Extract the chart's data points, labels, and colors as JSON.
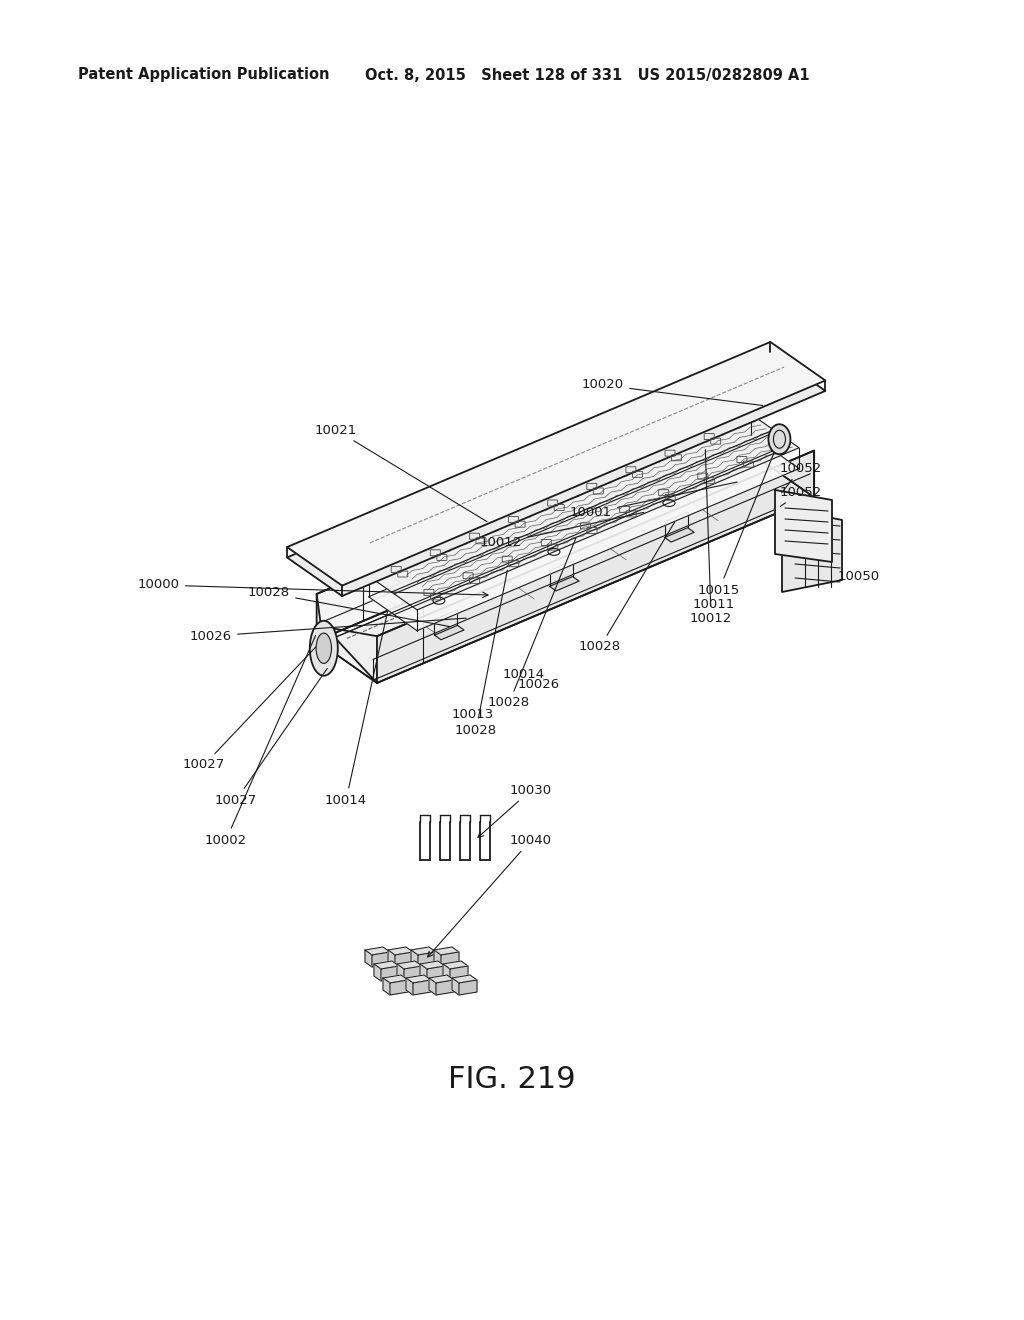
{
  "header_left": "Patent Application Publication",
  "header_mid": "Oct. 8, 2015   Sheet 128 of 331   US 2015/0282809 A1",
  "fig_label": "FIG. 219",
  "bg_color": "#ffffff",
  "line_color": "#1a1a1a"
}
